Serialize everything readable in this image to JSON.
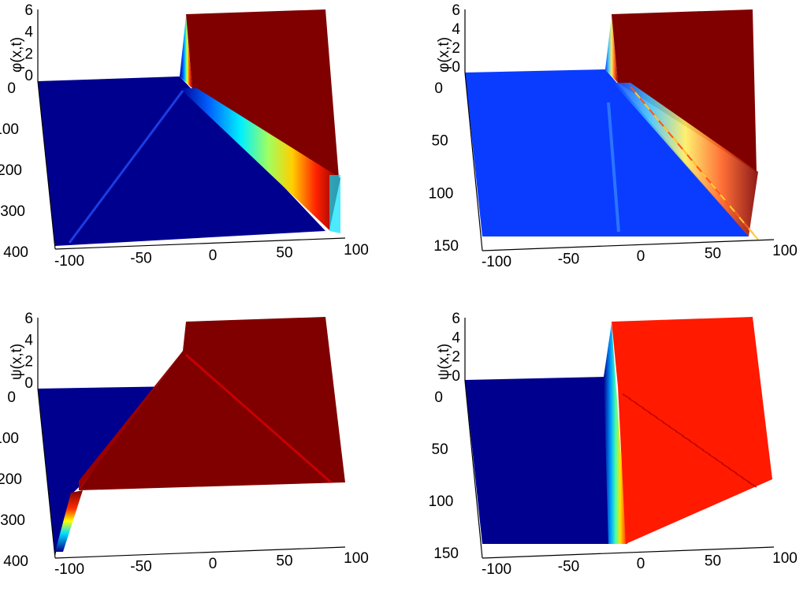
{
  "chart_data": [
    {
      "type": "surface",
      "zlabel": "φ(x,t)",
      "colormap": "jet",
      "x_ticks": [
        "-100",
        "-50",
        "0",
        "50",
        "100"
      ],
      "t_ticks": [
        "0",
        "100",
        "200",
        "300",
        "400"
      ],
      "z_ticks": [
        "0",
        "2",
        "4",
        "6"
      ],
      "xlim": [
        -100,
        100
      ],
      "tlim": [
        0,
        400
      ],
      "zlim": [
        0,
        6
      ],
      "low_level_color": "#00008f",
      "high_level_color": "#800000"
    },
    {
      "type": "surface",
      "zlabel": "φ(x,t)",
      "colormap": "jet",
      "x_ticks": [
        "-100",
        "-50",
        "0",
        "50",
        "100"
      ],
      "t_ticks": [
        "0",
        "50",
        "100",
        "150"
      ],
      "z_ticks": [
        "0",
        "2",
        "4",
        "6"
      ],
      "xlim": [
        -100,
        100
      ],
      "tlim": [
        0,
        150
      ],
      "zlim": [
        0,
        6
      ],
      "low_level_color": "#0a3cff",
      "high_level_color": "#800000"
    },
    {
      "type": "surface",
      "zlabel": "ψ(x,t)",
      "colormap": "jet",
      "x_ticks": [
        "-100",
        "-50",
        "0",
        "50",
        "100"
      ],
      "t_ticks": [
        "0",
        "100",
        "200",
        "300",
        "400"
      ],
      "z_ticks": [
        "0",
        "2",
        "4",
        "6"
      ],
      "xlim": [
        -100,
        100
      ],
      "tlim": [
        0,
        400
      ],
      "zlim": [
        0,
        6
      ],
      "low_level_color": "#00008f",
      "high_level_color": "#800000"
    },
    {
      "type": "surface",
      "zlabel": "ψ(x,t)",
      "colormap": "jet",
      "x_ticks": [
        "-100",
        "-50",
        "0",
        "50",
        "100"
      ],
      "t_ticks": [
        "0",
        "50",
        "100",
        "150"
      ],
      "z_ticks": [
        "0",
        "2",
        "4",
        "6"
      ],
      "xlim": [
        -100,
        100
      ],
      "tlim": [
        0,
        150
      ],
      "zlim": [
        0,
        6
      ],
      "low_level_color": "#00008f",
      "high_level_color": "#ff1a00"
    }
  ]
}
